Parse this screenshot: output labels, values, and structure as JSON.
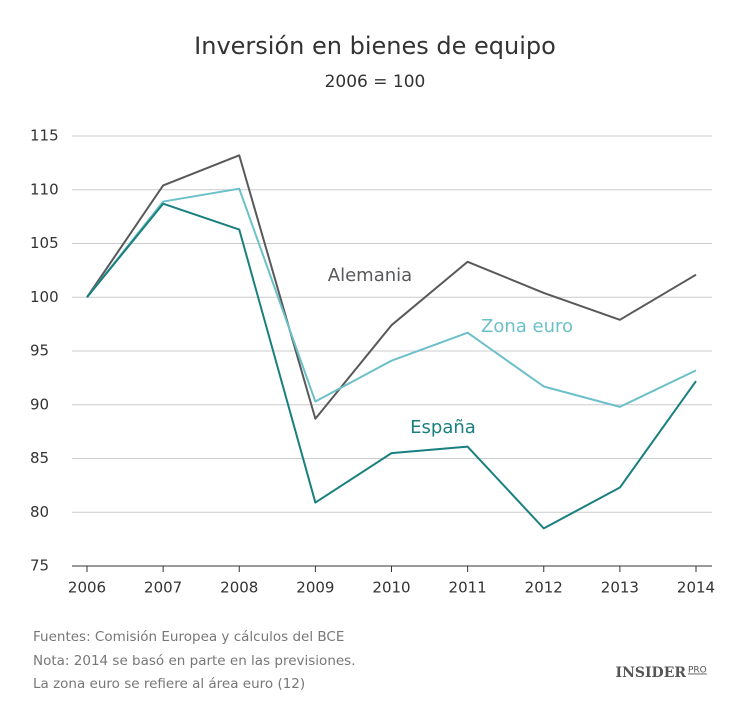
{
  "chart_data": {
    "type": "line",
    "title": "Inversión en bienes de equipo",
    "subtitle": "2006 = 100",
    "x": [
      2006,
      2007,
      2008,
      2009,
      2010,
      2011,
      2012,
      2013,
      2014
    ],
    "xlim": [
      2006,
      2014
    ],
    "xticks": [
      2006,
      2007,
      2008,
      2009,
      2010,
      2011,
      2012,
      2013,
      2014
    ],
    "ylim": [
      75,
      115
    ],
    "yticks": [
      75,
      80,
      85,
      90,
      95,
      100,
      105,
      110,
      115
    ],
    "grid": true,
    "series": [
      {
        "name": "Alemania",
        "color": "#58595b",
        "values": [
          100,
          110.4,
          113.2,
          88.7,
          97.4,
          103.3,
          100.4,
          97.9,
          102.1
        ]
      },
      {
        "name": "Zona euro",
        "color": "#6cc0c9",
        "values": [
          100,
          108.9,
          110.1,
          90.3,
          94.1,
          96.7,
          91.7,
          89.8,
          93.2
        ]
      },
      {
        "name": "España",
        "color": "#1a7f7f",
        "values": [
          100,
          108.7,
          106.3,
          80.9,
          85.5,
          86.1,
          78.5,
          82.3,
          92.2
        ]
      }
    ],
    "notes": [
      "Fuentes: Comisión Europea y cálculos del BCE",
      "Nota: 2014 se basó en parte en las previsiones.",
      "La zona euro se refiere al área euro (12)"
    ],
    "logo": {
      "text": "INSIDER",
      "suffix": "PRO"
    }
  }
}
